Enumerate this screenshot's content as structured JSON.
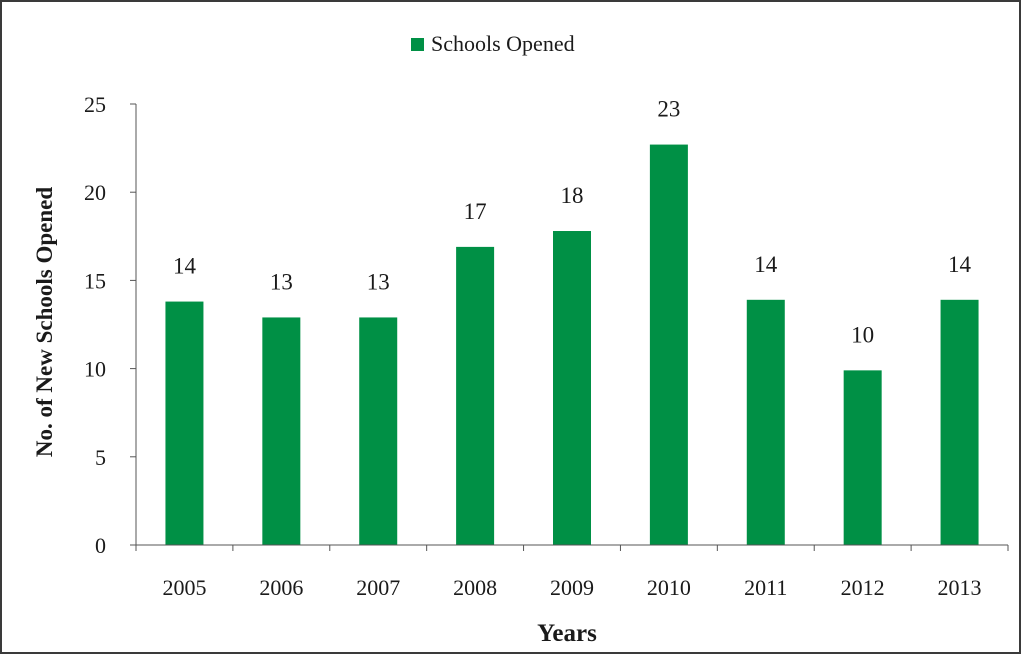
{
  "chart_data": {
    "type": "bar",
    "title": "",
    "xlabel": "Years",
    "ylabel": "No. of New Schools Opened",
    "categories": [
      "2005",
      "2006",
      "2007",
      "2008",
      "2009",
      "2010",
      "2011",
      "2012",
      "2013"
    ],
    "series": [
      {
        "name": "Schools Opened",
        "values": [
          13.8,
          12.9,
          12.9,
          16.9,
          17.8,
          22.7,
          13.9,
          9.9,
          13.9
        ],
        "data_labels": [
          "14",
          "13",
          "13",
          "17",
          "18",
          "23",
          "14",
          "10",
          "14"
        ],
        "color": "#009045"
      }
    ],
    "ylim": [
      0,
      25
    ],
    "yticks": [
      "0",
      "5",
      "10",
      "15",
      "20",
      "25"
    ],
    "grid": false,
    "legend_position": "top-center"
  }
}
